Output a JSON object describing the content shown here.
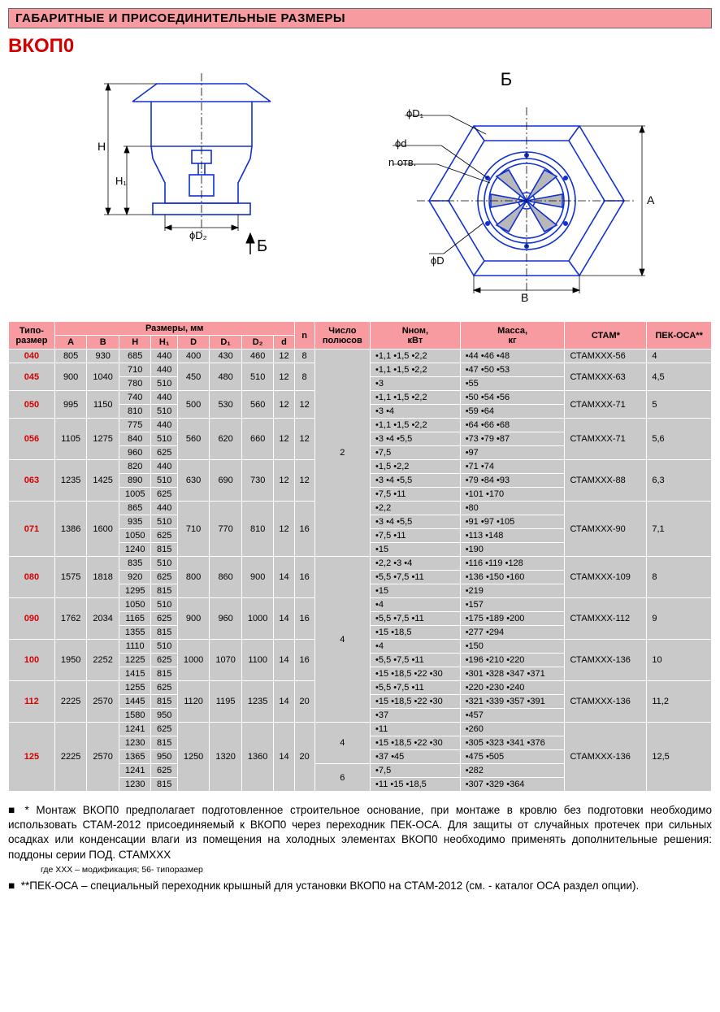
{
  "header": "ГАБАРИТНЫЕ И ПРИСОЕДИНИТЕЛЬНЫЕ РАЗМЕРЫ",
  "model": "ВКОП0",
  "diagram_labels": {
    "right": "Б",
    "bottom_arrow": "Б"
  },
  "dim_labels": {
    "H": "H",
    "H1": "H₁",
    "phiD2": "ϕD₂",
    "phiD1": "ϕD₁",
    "phid": "ϕd",
    "notv": "n отв.",
    "phiD": "ϕD",
    "B": "В",
    "A": "А"
  },
  "diagram_colors": {
    "stroke": "#1030d0",
    "hatch": "#909090",
    "dim": "#000"
  },
  "cols": {
    "size": "Типо-\nразмер",
    "dims_group": "Размеры, мм",
    "A": "A",
    "B": "B",
    "H": "H",
    "H1": "H₁",
    "D": "D",
    "D1": "D₁",
    "D2": "D₂",
    "d": "d",
    "n": "n",
    "poles": "Число\nполюсов",
    "Nnom": "Nном,\nкВт",
    "mass": "Масса,\nкг",
    "stam": "СТАМ*",
    "pek": "ПЕК-ОСА**"
  },
  "rows": [
    {
      "size": "040",
      "A": "805",
      "B": "930",
      "HH1": [
        [
          "685",
          "440"
        ]
      ],
      "D": "400",
      "D1": "430",
      "D2": "460",
      "d": "12",
      "n": "8",
      "poles": "2",
      "Nnom": [
        "•1,1 •1,5 •2,2"
      ],
      "mass": [
        "•44 •46 •48"
      ],
      "stam": "СТАМХХХ-56",
      "pek": "4"
    },
    {
      "size": "045",
      "A": "900",
      "B": "1040",
      "HH1": [
        [
          "710",
          "440"
        ],
        [
          "780",
          "510"
        ]
      ],
      "D": "450",
      "D1": "480",
      "D2": "510",
      "d": "12",
      "n": "8",
      "poles": "2",
      "Nnom": [
        "•1,1 •1,5 •2,2",
        "•3"
      ],
      "mass": [
        "•47 •50 •53",
        "•55"
      ],
      "stam": "СТАМХХХ-63",
      "pek": "4,5"
    },
    {
      "size": "050",
      "A": "995",
      "B": "1150",
      "HH1": [
        [
          "740",
          "440"
        ],
        [
          "810",
          "510"
        ]
      ],
      "D": "500",
      "D1": "530",
      "D2": "560",
      "d": "12",
      "n": "12",
      "poles": "2",
      "Nnom": [
        "•1,1 •1,5 •2,2",
        "•3   •4"
      ],
      "mass": [
        "•50 •54 •56",
        "•59 •64"
      ],
      "stam": "СТАМХХХ-71",
      "pek": "5"
    },
    {
      "size": "056",
      "A": "1105",
      "B": "1275",
      "HH1": [
        [
          "775",
          "440"
        ],
        [
          "840",
          "510"
        ],
        [
          "960",
          "625"
        ]
      ],
      "D": "560",
      "D1": "620",
      "D2": "660",
      "d": "12",
      "n": "12",
      "poles": "2",
      "Nnom": [
        "•1,1 •1,5 •2,2",
        "•3   •4   •5,5",
        "•7,5"
      ],
      "mass": [
        "•64 •66 •68",
        "•73 •79 •87",
        "•97"
      ],
      "stam": "СТАМХХХ-71",
      "pek": "5,6"
    },
    {
      "size": "063",
      "A": "1235",
      "B": "1425",
      "HH1": [
        [
          "820",
          "440"
        ],
        [
          "890",
          "510"
        ],
        [
          "1005",
          "625"
        ]
      ],
      "D": "630",
      "D1": "690",
      "D2": "730",
      "d": "12",
      "n": "12",
      "poles": "2",
      "Nnom": [
        "•1,5 •2,2",
        "•3   •4   •5,5",
        "•7,5 •11"
      ],
      "mass": [
        "•71 •74",
        "•79 •84 •93",
        "•101 •170"
      ],
      "stam": "СТАМХХХ-88",
      "pek": "6,3"
    },
    {
      "size": "071",
      "A": "1386",
      "B": "1600",
      "HH1": [
        [
          "865",
          "440"
        ],
        [
          "935",
          "510"
        ],
        [
          "1050",
          "625"
        ],
        [
          "1240",
          "815"
        ]
      ],
      "D": "710",
      "D1": "770",
      "D2": "810",
      "d": "12",
      "n": "16",
      "poles": "2",
      "Nnom": [
        "•2,2",
        "•3   •4   •5,5",
        "•7,5 •11",
        "•15"
      ],
      "mass": [
        "•80",
        "•91 •97 •105",
        "•113 •148",
        "•190"
      ],
      "stam": "СТАМХХХ-90",
      "pek": "7,1"
    },
    {
      "size": "080",
      "A": "1575",
      "B": "1818",
      "HH1": [
        [
          "835",
          "510"
        ],
        [
          "920",
          "625"
        ],
        [
          "1295",
          "815"
        ]
      ],
      "D": "800",
      "D1": "860",
      "D2": "900",
      "d": "14",
      "n": "16",
      "poles": "4",
      "Nnom": [
        "•2,2 •3    •4",
        "•5,5 •7,5  •11",
        "•15"
      ],
      "mass": [
        "•116 •119 •128",
        "•136 •150 •160",
        "•219"
      ],
      "stam": "СТАМХХХ-109",
      "pek": "8"
    },
    {
      "size": "090",
      "A": "1762",
      "B": "2034",
      "HH1": [
        [
          "1050",
          "510"
        ],
        [
          "1165",
          "625"
        ],
        [
          "1355",
          "815"
        ]
      ],
      "D": "900",
      "D1": "960",
      "D2": "1000",
      "d": "14",
      "n": "16",
      "poles": "4",
      "Nnom": [
        "•4",
        "•5,5 •7,5  •11",
        "•15 •18,5"
      ],
      "mass": [
        "•157",
        "•175 •189 •200",
        "•277 •294"
      ],
      "stam": "СТАМХХХ-112",
      "pek": "9"
    },
    {
      "size": "100",
      "A": "1950",
      "B": "2252",
      "HH1": [
        [
          "1110",
          "510"
        ],
        [
          "1225",
          "625"
        ],
        [
          "1415",
          "815"
        ]
      ],
      "D": "1000",
      "D1": "1070",
      "D2": "1100",
      "d": "14",
      "n": "16",
      "poles": "4",
      "Nnom": [
        "•4",
        "•5,5 •7,5  •11",
        "•15 •18,5 •22 •30"
      ],
      "mass": [
        "•150",
        "•196 •210 •220",
        "•301 •328 •347 •371"
      ],
      "stam": "СТАМХХХ-136",
      "pek": "10"
    },
    {
      "size": "112",
      "A": "2225",
      "B": "2570",
      "HH1": [
        [
          "1255",
          "625"
        ],
        [
          "1445",
          "815"
        ],
        [
          "1580",
          "950"
        ]
      ],
      "D": "1120",
      "D1": "1195",
      "D2": "1235",
      "d": "14",
      "n": "20",
      "poles": "4",
      "Nnom": [
        "•5,5 •7,5  •11",
        "•15 •18,5 •22 •30",
        "•37"
      ],
      "mass": [
        "•220 •230 •240",
        "•321 •339 •357 •391",
        "•457"
      ],
      "stam": "СТАМХХХ-136",
      "pek": "11,2"
    },
    {
      "size": "125",
      "A": "2225",
      "B": "2570",
      "HH1": [
        [
          "1241",
          "625"
        ],
        [
          "1230",
          "815"
        ],
        [
          "1365",
          "950"
        ],
        [
          "1241",
          "625"
        ],
        [
          "1230",
          "815"
        ]
      ],
      "D": "1250",
      "D1": "1320",
      "D2": "1360",
      "d": "14",
      "n": "20",
      "poles": [
        "4",
        "6"
      ],
      "poles_split": [
        3,
        2
      ],
      "Nnom": [
        "•11",
        "•15 •18,5 •22 •30",
        "•37 •45",
        "•7,5",
        "•11 •15  •18,5"
      ],
      "mass": [
        "•260",
        "•305 •323 •341 •376",
        "•475 •505",
        "•282",
        "•307 •329 •364"
      ],
      "stam": "СТАМХХХ-136",
      "pek": "12,5"
    }
  ],
  "notes": {
    "n1": "* Монтаж ВКОП0 предполагает подготовленное строительное основание, при монтаже в кровлю без подготовки необходимо использовать СТАМ-2012 присоединяемый к ВКОП0 через переходник ПЕК-ОСА. Для защиты от случайных протечек при сильных осадках или конденсации влаги из помещения на холодных элементах ВКОП0 необходимо применять дополнительные решения: поддоны серии ПОД. СТАМХХХ",
    "n1sub": "где ХХХ – модификация; 56- типоразмер",
    "n2": "**ПЕК-ОСА – специальный переходник крышный для установки ВКОП0 на СТАМ-2012 (см. - каталог ОСА раздел опции)."
  }
}
